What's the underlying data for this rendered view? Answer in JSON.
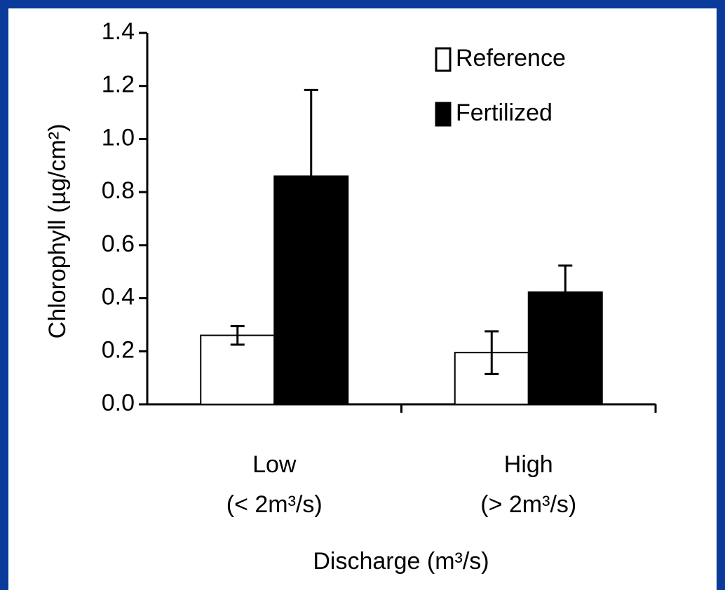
{
  "chart_data": {
    "type": "bar",
    "y_label": "Chlorophyll (µg/cm²)",
    "x_label": "Discharge (m³/s)",
    "categories": [
      "Low",
      "High"
    ],
    "category_sublabels": [
      "(< 2m³/s)",
      "(> 2m³/s)"
    ],
    "series": [
      {
        "name": "Reference",
        "color": "#ffffff",
        "values": [
          0.26,
          0.195
        ],
        "errors": [
          0.035,
          0.08
        ]
      },
      {
        "name": "Fertilized",
        "color": "#000000",
        "values": [
          0.86,
          0.423
        ],
        "errors": [
          0.325,
          0.1
        ]
      }
    ],
    "ylim": [
      0,
      1.4
    ],
    "yticks": [
      {
        "value": 0,
        "label": "0.0"
      },
      0.2,
      0.4,
      0.6,
      0.8,
      {
        "value": 1,
        "label": "1.0"
      },
      1.2,
      1.4
    ],
    "legend": "upper right"
  }
}
